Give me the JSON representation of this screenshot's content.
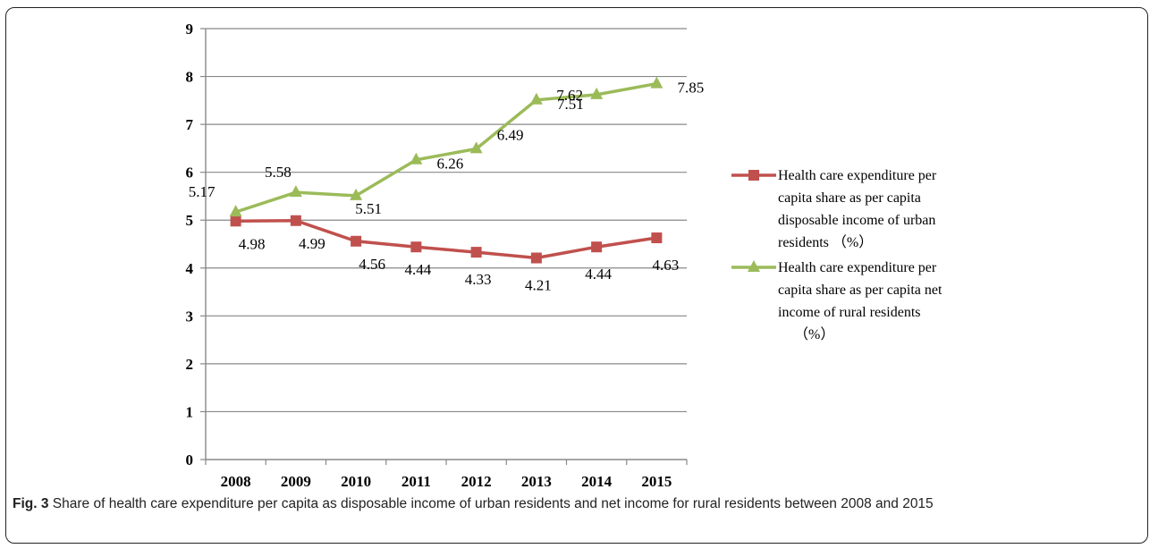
{
  "chart_data": {
    "type": "line",
    "categories": [
      "2008",
      "2009",
      "2010",
      "2011",
      "2012",
      "2013",
      "2014",
      "2015"
    ],
    "ylim": [
      0,
      9
    ],
    "yticks": [
      "0",
      "1",
      "2",
      "3",
      "4",
      "5",
      "6",
      "7",
      "8",
      "9"
    ],
    "grid": "horizontal",
    "legend_position": "right",
    "series": [
      {
        "name": "Health care expenditure per capita share as per capita disposable income of urban residents （%）",
        "legend_lines": [
          "Health care expenditure per",
          "capita share as per capita",
          "disposable income of urban",
          "residents （%）"
        ],
        "values": [
          4.98,
          4.99,
          4.56,
          4.44,
          4.33,
          4.21,
          4.44,
          4.63
        ],
        "labels": [
          "4.98",
          "4.99",
          "4.56",
          "4.44",
          "4.33",
          "4.21",
          "4.44",
          "4.63"
        ],
        "marker": "square",
        "color": "#C0504D"
      },
      {
        "name": "Health care expenditure per capita share as per capita net income of rural residents （%）",
        "legend_lines": [
          "Health care expenditure per",
          "capita share as per capita net",
          "income of rural residents",
          "（%）"
        ],
        "values": [
          5.17,
          5.58,
          5.51,
          6.26,
          6.49,
          7.51,
          7.62,
          7.85
        ],
        "labels": [
          "5.17",
          "5.58",
          "5.51",
          "6.26",
          "6.49",
          "7.51",
          "7.62",
          "7.85"
        ],
        "marker": "triangle",
        "color": "#9BBB59"
      }
    ]
  },
  "caption": {
    "label": "Fig. 3",
    "text": "Share of health care expenditure per capita as disposable income of urban residents and net income for rural residents between 2008 and 2015"
  }
}
